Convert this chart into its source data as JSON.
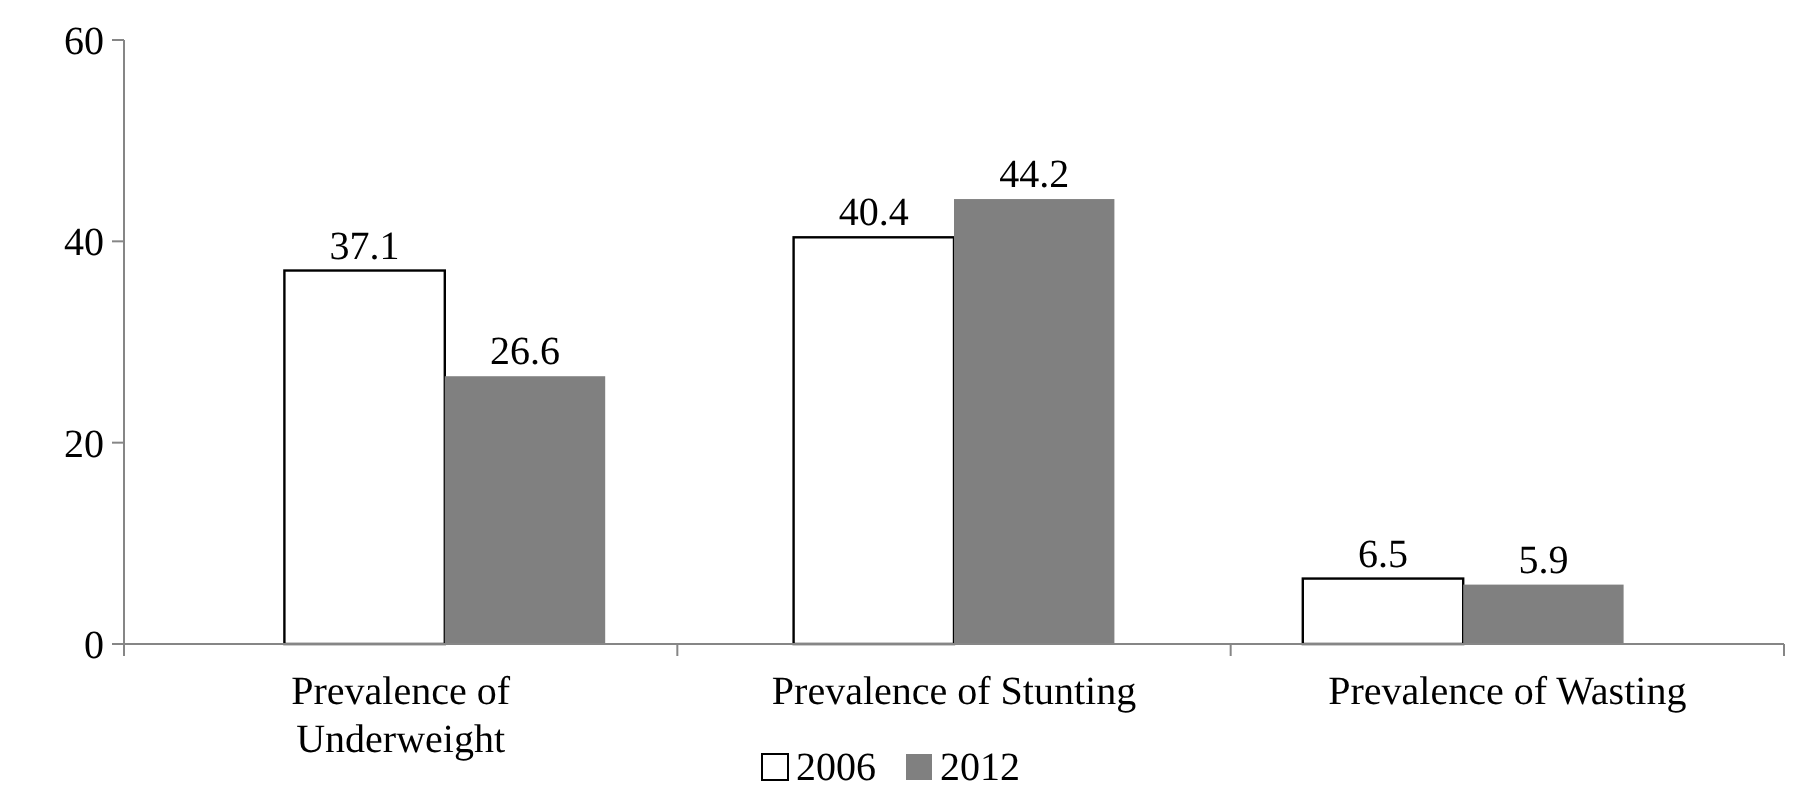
{
  "chart_data": {
    "type": "bar",
    "categories": [
      "Prevalence of Underweight",
      "Prevalence of Stunting",
      "Prevalence of Wasting"
    ],
    "series": [
      {
        "name": "2006",
        "color": "#ffffff",
        "values": [
          37.1,
          40.4,
          6.5
        ]
      },
      {
        "name": "2012",
        "color": "#808080",
        "values": [
          26.6,
          44.2,
          5.9
        ]
      }
    ],
    "ylim": [
      0,
      60
    ],
    "yticks": [
      0,
      20,
      40,
      60
    ],
    "grid": false,
    "legend": "bottom",
    "data_labels": true
  }
}
